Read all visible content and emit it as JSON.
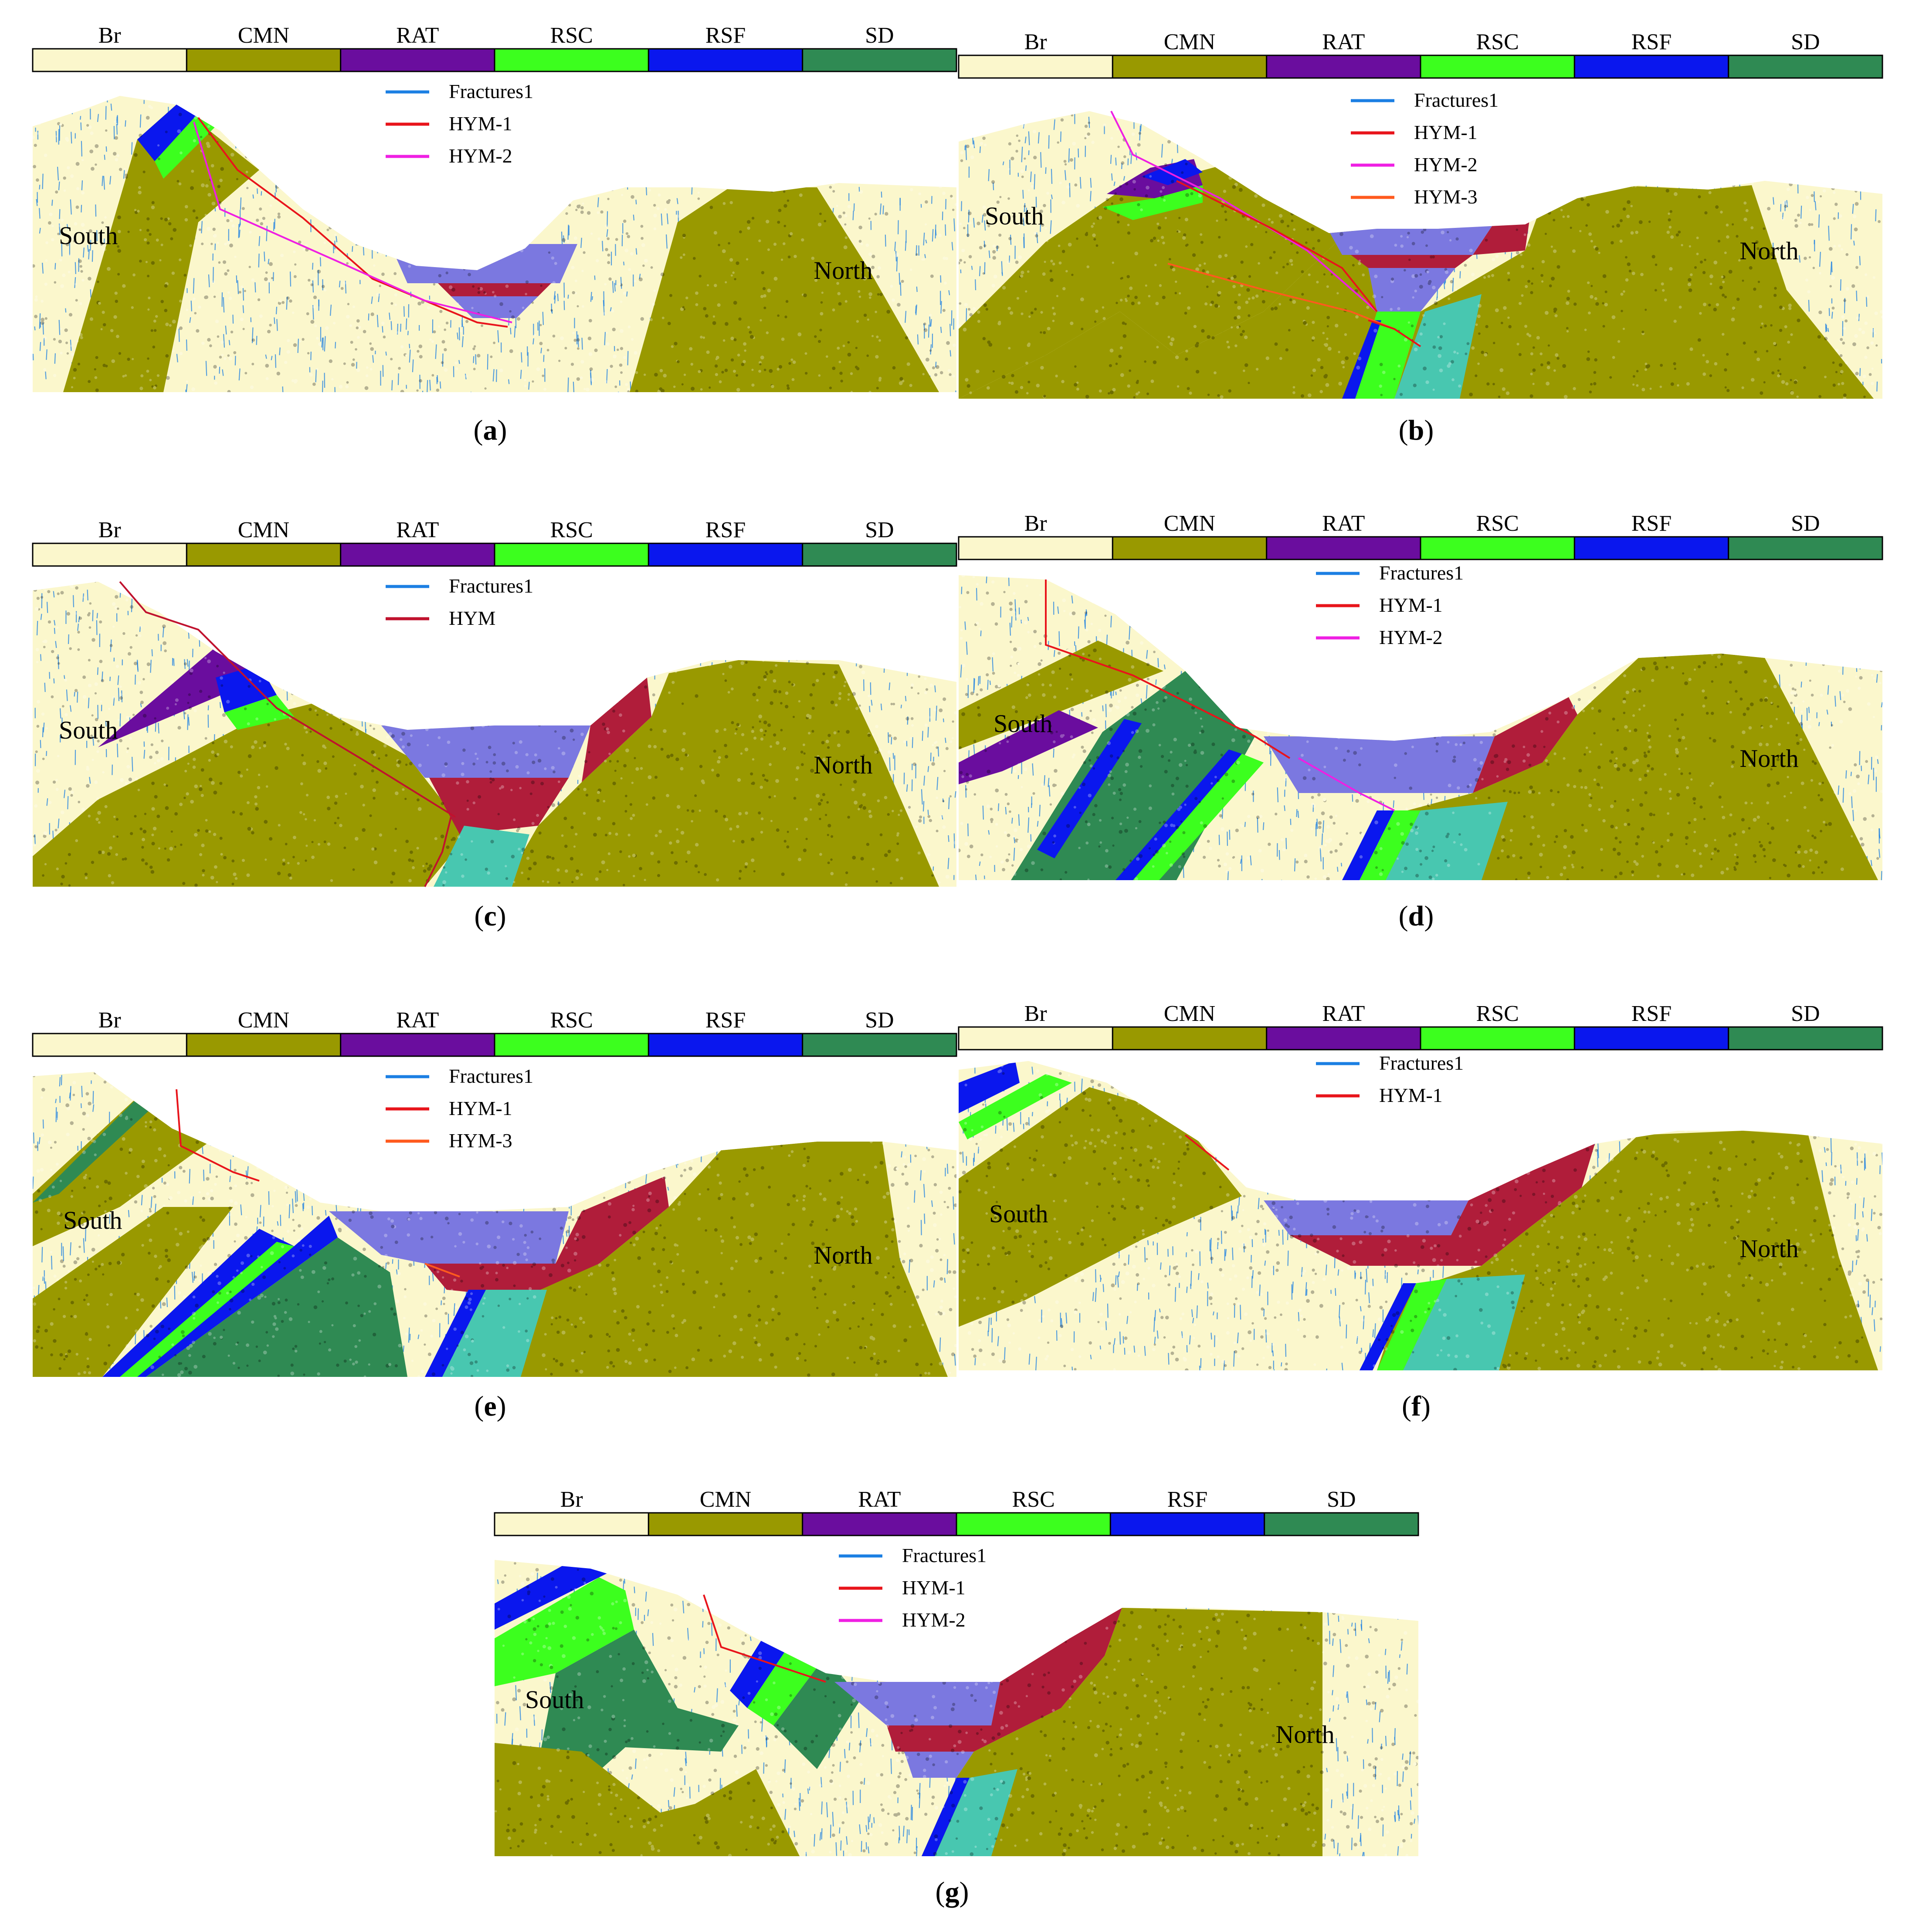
{
  "colors": {
    "Br": "#fbf7cc",
    "CMN": "#999900",
    "RAT": "#6a0d9e",
    "RSC": "#3cff1e",
    "RSF": "#0a17ee",
    "SD": "#2f8a53",
    "water": "#7b78e0",
    "dark_red": "#b01d3a",
    "teal": "#2e7f74",
    "cyan": "#48c7b0",
    "fracture": "#1b7fe3",
    "hym1": "#e8141b",
    "hym2": "#ef1fe3",
    "hym3": "#ff5a1e",
    "hym": "#c0122e"
  },
  "panels": [
    {
      "id": "a",
      "caption": "a",
      "legend_bar": [
        "Br",
        "CMN",
        "RAT",
        "RSC",
        "RSF",
        "SD"
      ],
      "legend_lines": [
        {
          "label": "Fractures1",
          "style": "fracture"
        },
        {
          "label": "HYM-1",
          "style": "hym1"
        },
        {
          "label": "HYM-2",
          "style": "hym2"
        }
      ],
      "south_label": "South",
      "north_label": "North"
    },
    {
      "id": "b",
      "caption": "b",
      "legend_bar": [
        "Br",
        "CMN",
        "RAT",
        "RSC",
        "RSF",
        "SD"
      ],
      "legend_lines": [
        {
          "label": "Fractures1",
          "style": "fracture"
        },
        {
          "label": "HYM-1",
          "style": "hym1"
        },
        {
          "label": "HYM-2",
          "style": "hym2"
        },
        {
          "label": "HYM-3",
          "style": "hym3"
        }
      ],
      "south_label": "South",
      "north_label": "North"
    },
    {
      "id": "c",
      "caption": "c",
      "legend_bar": [
        "Br",
        "CMN",
        "RAT",
        "RSC",
        "RSF",
        "SD"
      ],
      "legend_lines": [
        {
          "label": "Fractures1",
          "style": "fracture"
        },
        {
          "label": "HYM",
          "style": "hym"
        }
      ],
      "south_label": "South",
      "north_label": "North"
    },
    {
      "id": "d",
      "caption": "d",
      "legend_bar": [
        "Br",
        "CMN",
        "RAT",
        "RSC",
        "RSF",
        "SD"
      ],
      "legend_lines": [
        {
          "label": "Fractures1",
          "style": "fracture"
        },
        {
          "label": "HYM-1",
          "style": "hym1"
        },
        {
          "label": "HYM-2",
          "style": "hym2"
        }
      ],
      "south_label": "South",
      "north_label": "North"
    },
    {
      "id": "e",
      "caption": "e",
      "legend_bar": [
        "Br",
        "CMN",
        "RAT",
        "RSC",
        "RSF",
        "SD"
      ],
      "legend_lines": [
        {
          "label": "Fractures1",
          "style": "fracture"
        },
        {
          "label": "HYM-1",
          "style": "hym1"
        },
        {
          "label": "HYM-3",
          "style": "hym3"
        }
      ],
      "south_label": "South",
      "north_label": "North"
    },
    {
      "id": "f",
      "caption": "f",
      "legend_bar": [
        "Br",
        "CMN",
        "RAT",
        "RSC",
        "RSF",
        "SD"
      ],
      "legend_lines": [
        {
          "label": "Fractures1",
          "style": "fracture"
        },
        {
          "label": "HYM-1",
          "style": "hym1"
        }
      ],
      "south_label": "South",
      "north_label": "North"
    },
    {
      "id": "g",
      "caption": "g",
      "legend_bar": [
        "Br",
        "CMN",
        "RAT",
        "RSC",
        "RSF",
        "SD"
      ],
      "legend_lines": [
        {
          "label": "Fractures1",
          "style": "fracture"
        },
        {
          "label": "HYM-1",
          "style": "hym1"
        },
        {
          "label": "HYM-2",
          "style": "hym2"
        }
      ],
      "south_label": "South",
      "north_label": "North"
    }
  ]
}
